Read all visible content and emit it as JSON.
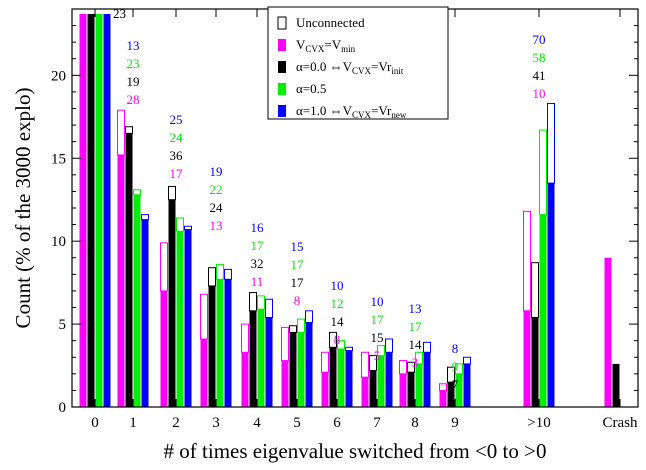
{
  "chart_data": {
    "type": "bar",
    "xlabel": "# of times eigenvalue switched from <0 to >0",
    "ylabel": "Count (% of the 3000 explo)",
    "ylim": [
      0,
      24
    ],
    "yticks": [
      0,
      5,
      10,
      15,
      20
    ],
    "categories": [
      "0",
      "1",
      "2",
      "3",
      "4",
      "5",
      "6",
      "7",
      "8",
      "9",
      ">10",
      "Crash"
    ],
    "legend_position": "top-right",
    "legend": [
      {
        "key": "unconnected",
        "label": "Unconnected",
        "color": "#000000"
      },
      {
        "key": "vmin",
        "label_main": "V",
        "label_sub1": "CVX",
        "label_mid": "=V",
        "label_sub2": "min",
        "label_end": "",
        "color": "#ff00ff"
      },
      {
        "key": "a0",
        "label_main": "α=0.0 ⇔V",
        "label_sub1": "CVX",
        "label_mid": "=Vr",
        "label_sub2": "init",
        "label_end": "",
        "color": "#000000"
      },
      {
        "key": "a05",
        "label_main": "α=0.5",
        "label_sub1": "",
        "label_mid": "",
        "label_sub2": "",
        "label_end": "",
        "color": "#00ee00"
      },
      {
        "key": "a1",
        "label_main": "α=1.0 ⇔V",
        "label_sub1": "CVX",
        "label_mid": "=Vr",
        "label_sub2": "new",
        "label_end": "",
        "color": "#0000ff"
      }
    ],
    "series": [
      {
        "name": "V_CVX=V_min",
        "color": "#ff00ff",
        "values": [
          23.7,
          15.2,
          7.0,
          4.1,
          3.3,
          2.8,
          2.1,
          1.8,
          2.0,
          1.0,
          5.8,
          9.0
        ],
        "total": [
          23.7,
          17.9,
          9.9,
          6.8,
          5.0,
          4.8,
          3.3,
          3.3,
          2.8,
          1.4,
          11.8,
          9.0
        ]
      },
      {
        "name": "α=0.0 ⇔V_CVX=Vr_init",
        "color": "#000000",
        "values": [
          23.7,
          16.5,
          12.5,
          7.3,
          5.8,
          4.5,
          3.6,
          2.2,
          2.1,
          1.5,
          5.4,
          2.6
        ],
        "total": [
          23.7,
          16.9,
          13.3,
          8.4,
          6.9,
          4.9,
          4.5,
          3.1,
          2.7,
          2.4,
          8.7,
          2.6
        ]
      },
      {
        "name": "α=0.5",
        "color": "#00ee00",
        "values": [
          23.7,
          12.8,
          10.6,
          7.7,
          5.9,
          4.5,
          3.5,
          3.1,
          2.6,
          2.0,
          11.6,
          null
        ],
        "total": [
          23.7,
          13.1,
          11.4,
          8.6,
          6.7,
          5.3,
          4.0,
          3.7,
          3.3,
          2.6,
          16.7,
          null
        ]
      },
      {
        "name": "α=1.0 ⇔V_CVX=Vr_new",
        "color": "#0000ff",
        "values": [
          23.7,
          11.3,
          10.7,
          7.7,
          5.4,
          5.1,
          3.4,
          3.3,
          3.3,
          2.6,
          13.5,
          null
        ],
        "total": [
          23.7,
          11.6,
          10.9,
          8.3,
          6.5,
          5.8,
          3.6,
          4.1,
          3.9,
          3.0,
          18.3,
          null
        ]
      }
    ],
    "annotations": [
      {
        "x": "0",
        "color": "#000000",
        "text": "23"
      },
      {
        "x": "1",
        "color": "#0000ff",
        "text": "13"
      },
      {
        "x": "1",
        "color": "#00ee00",
        "text": "23"
      },
      {
        "x": "1",
        "color": "#000000",
        "text": "19"
      },
      {
        "x": "1",
        "color": "#ff00ff",
        "text": "28"
      },
      {
        "x": "2",
        "color": "#0000ff",
        "text": "25"
      },
      {
        "x": "2",
        "color": "#00ee00",
        "text": "24"
      },
      {
        "x": "2",
        "color": "#000000",
        "text": "36"
      },
      {
        "x": "2",
        "color": "#ff00ff",
        "text": "17"
      },
      {
        "x": "3",
        "color": "#0000ff",
        "text": "19"
      },
      {
        "x": "3",
        "color": "#00ee00",
        "text": "22"
      },
      {
        "x": "3",
        "color": "#000000",
        "text": "24"
      },
      {
        "x": "3",
        "color": "#ff00ff",
        "text": "13"
      },
      {
        "x": "4",
        "color": "#0000ff",
        "text": "16"
      },
      {
        "x": "4",
        "color": "#00ee00",
        "text": "17"
      },
      {
        "x": "4",
        "color": "#000000",
        "text": "32"
      },
      {
        "x": "4",
        "color": "#ff00ff",
        "text": "11"
      },
      {
        "x": "5",
        "color": "#0000ff",
        "text": "15"
      },
      {
        "x": "5",
        "color": "#00ee00",
        "text": "17"
      },
      {
        "x": "5",
        "color": "#000000",
        "text": "17"
      },
      {
        "x": "5",
        "color": "#ff00ff",
        "text": "8"
      },
      {
        "x": "6",
        "color": "#0000ff",
        "text": "10"
      },
      {
        "x": "6",
        "color": "#00ee00",
        "text": "12"
      },
      {
        "x": "6",
        "color": "#000000",
        "text": "14"
      },
      {
        "x": "6",
        "color": "#ff00ff",
        "text": "8"
      },
      {
        "x": "7",
        "color": "#0000ff",
        "text": "10"
      },
      {
        "x": "7",
        "color": "#00ee00",
        "text": "17"
      },
      {
        "x": "7",
        "color": "#000000",
        "text": "15"
      },
      {
        "x": "7",
        "color": "#ff00ff",
        "text": "5"
      },
      {
        "x": "8",
        "color": "#0000ff",
        "text": "13"
      },
      {
        "x": "8",
        "color": "#00ee00",
        "text": "17"
      },
      {
        "x": "8",
        "color": "#000000",
        "text": "14"
      },
      {
        "x": "8",
        "color": "#ff00ff",
        "text": "3"
      },
      {
        "x": "9",
        "color": "#0000ff",
        "text": "8"
      },
      {
        "x": "9",
        "color": "#00ee00",
        "text": "9"
      },
      {
        "x": "9",
        "color": "#000000",
        "text": "7"
      },
      {
        "x": "9",
        "color": "#ff00ff",
        "text": "1"
      },
      {
        "x": ">10",
        "color": "#0000ff",
        "text": "70"
      },
      {
        "x": ">10",
        "color": "#00ee00",
        "text": "58"
      },
      {
        "x": ">10",
        "color": "#000000",
        "text": "41"
      },
      {
        "x": ">10",
        "color": "#ff00ff",
        "text": "10"
      }
    ]
  }
}
